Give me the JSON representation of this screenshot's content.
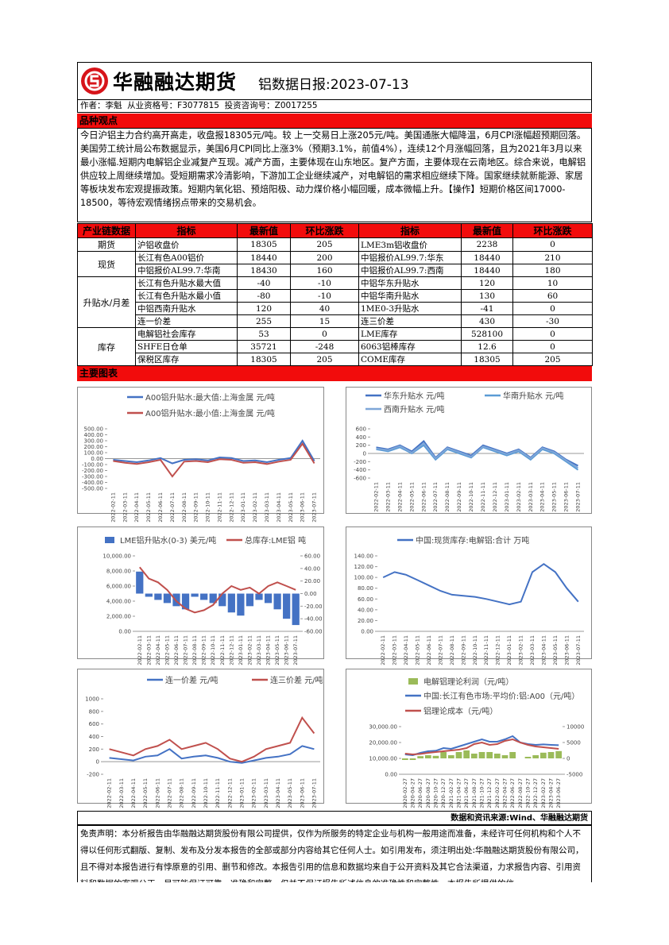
{
  "header": {
    "company": "华融融达期货",
    "report_title": "铝数据日报:2023-07-13",
    "author_line": "作者：李魁  从业资格号：F3077815  投资咨询号：Z0017255"
  },
  "view": {
    "heading": "品种观点",
    "text": "今日沪铝主力合约高开高走，收盘报18305元/吨。较 上一交易日上涨205元/吨。美国通胀大幅降温，6月CPI涨幅超预期回落。美国劳工统计局公布数据显示，美国6月CPI同比上涨3%（预期3.1%，前值4%），连续12个月涨幅回落，且为2021年3月以来最小涨幅.短期内电解铝企业减复产互现。减产方面，主要体现在山东地区。复产方面，主要体现在云南地区。综合来说，电解铝供应较上周继续增加。受短期需求冷清影响，下游加工企业继续减产，对电解铝的需求相应继续下降。国家继续就新能源、家居等板块发布宏观提振政策。短期内氧化铝、预焙阳极、动力煤价格小幅回暖，成本微幅上升。【操作】短期价格区间17000-18500，等待宏观情绪拐点带来的交易机会。"
  },
  "table": {
    "header": [
      "产业链数据",
      "指标",
      "最新值",
      "环比涨跌",
      "指标",
      "最新值",
      "环比涨跌"
    ],
    "groups": [
      {
        "label": "期货",
        "rows": [
          [
            "沪铝收盘价",
            18305,
            205,
            "LME3m铝收盘价",
            2238,
            0
          ]
        ]
      },
      {
        "label": "现货",
        "rows": [
          [
            "长江有色A00铝价",
            18440,
            200,
            "中铝报价AL99.7:华东",
            18440,
            210
          ],
          [
            "中铝报价AL99.7:华南",
            18430,
            160,
            "中铝报价AL99.7:西南",
            18440,
            180
          ]
        ]
      },
      {
        "label": "升贴水/月差",
        "rows": [
          [
            "长江有色升贴水最大值",
            -40,
            -10,
            "中铝华东升贴水",
            120,
            10
          ],
          [
            "长江有色升贴水最小值",
            -80,
            -10,
            "中铝华南升贴水",
            130,
            60
          ],
          [
            "中铝西南升贴水",
            120,
            40,
            "1ME0-3升贴水",
            -41,
            0
          ],
          [
            "连一价差",
            255,
            15,
            "连三价差",
            430,
            -30
          ]
        ]
      },
      {
        "label": "库存",
        "rows": [
          [
            "电解铝社会库存",
            53,
            0,
            "LME库存",
            528100,
            0
          ],
          [
            "SHFE日仓单",
            35721,
            -248,
            "6063铝棒库存",
            12.6,
            0
          ],
          [
            "保税区库存",
            18305,
            205,
            "COME库存",
            18305,
            205
          ]
        ]
      }
    ]
  },
  "charts_heading": "主要图表",
  "chart_data": [
    {
      "type": "line",
      "categories": [
        "2022-02-11",
        "2022-03-11",
        "2022-04-11",
        "2022-05-11",
        "2022-06-11",
        "2022-07-11",
        "2022-08-11",
        "2022-09-11",
        "2022-10-11",
        "2022-11-11",
        "2022-12-11",
        "2023-01-11",
        "2023-02-11",
        "2023-03-11",
        "2023-04-11",
        "2023-05-11",
        "2023-06-11",
        "2023-07-11"
      ],
      "series": [
        {
          "name": "A00铝升贴水:最大值:上海金属 元/吨",
          "color": "#4472c4",
          "values": [
            -20,
            -40,
            -60,
            -30,
            10,
            -80,
            -20,
            -10,
            -30,
            20,
            10,
            -40,
            -30,
            -60,
            -20,
            10,
            300,
            -40
          ]
        },
        {
          "name": "A00铝升贴水:最小值:上海金属 元/吨",
          "color": "#c0504d",
          "values": [
            -40,
            -70,
            -90,
            -60,
            -20,
            -300,
            -50,
            -40,
            -60,
            -10,
            -20,
            -70,
            -60,
            -90,
            -50,
            -20,
            250,
            -80
          ]
        }
      ],
      "ylim": [
        -500,
        500
      ],
      "yticks": [
        {
          "value": -500,
          "label": "-500.00"
        },
        {
          "value": -400,
          "label": "-400.00"
        },
        {
          "value": -300,
          "label": "-300.00"
        },
        {
          "value": -200,
          "label": "-200.00"
        },
        {
          "value": -100,
          "label": "-100.00"
        },
        {
          "value": 0,
          "label": "0.00"
        },
        {
          "value": 100,
          "label": "100.00"
        },
        {
          "value": 200,
          "label": "200.00"
        },
        {
          "value": 300,
          "label": "300.00"
        },
        {
          "value": 400,
          "label": "400.00"
        },
        {
          "value": 500,
          "label": "500.00"
        }
      ]
    },
    {
      "type": "line",
      "categories": [
        "2022-02-11",
        "2022-03-11",
        "2022-04-11",
        "2022-05-11",
        "2022-06-11",
        "2022-07-11",
        "2022-08-11",
        "2022-09-11",
        "2022-10-11",
        "2022-11-11",
        "2022-12-11",
        "2023-01-11",
        "2023-02-11",
        "2023-03-11",
        "2023-04-11",
        "2023-05-11",
        "2023-06-11",
        "2023-07-11"
      ],
      "series": [
        {
          "name": "华东升贴水 元/吨",
          "color": "#4472c4",
          "values": [
            150,
            100,
            200,
            50,
            300,
            -100,
            150,
            50,
            -50,
            200,
            100,
            0,
            100,
            -100,
            150,
            50,
            -150,
            -300
          ]
        },
        {
          "name": "华南升贴水 元/吨",
          "color": "#5b9bd5",
          "values": [
            100,
            50,
            150,
            0,
            200,
            -150,
            100,
            0,
            -100,
            150,
            50,
            -50,
            50,
            -150,
            100,
            0,
            -200,
            -400
          ]
        },
        {
          "name": "西南升贴水 元/吨",
          "color": "#7ea6d8",
          "values": [
            120,
            80,
            180,
            20,
            250,
            -120,
            130,
            30,
            -80,
            170,
            80,
            -20,
            80,
            -120,
            130,
            30,
            -170,
            -350
          ]
        }
      ],
      "ylim": [
        -600,
        600
      ],
      "yticks": [
        -600,
        -400,
        -200,
        0,
        200,
        400,
        600
      ]
    },
    {
      "type": "combo",
      "categories": [
        "2022-02-11",
        "2022-03-11",
        "2022-04-11",
        "2022-05-11",
        "2022-06-11",
        "2022-07-11",
        "2022-08-11",
        "2022-09-11",
        "2022-10-11",
        "2022-11-11",
        "2022-12-11",
        "2023-01-11",
        "2023-02-11",
        "2023-03-11",
        "2023-04-11",
        "2023-05-11",
        "2023-06-11",
        "2023-07-11"
      ],
      "series": [
        {
          "name": "LME铝升贴水(0-3) 美元/吨",
          "type": "bar",
          "axis": "y2",
          "color": "#4472c4",
          "values": [
            35,
            -5,
            -10,
            -15,
            -20,
            -25,
            -5,
            -10,
            -15,
            -20,
            -30,
            -35,
            -20,
            -10,
            -15,
            -25,
            -40,
            -50
          ]
        },
        {
          "name": "总库存:LME铝 吨",
          "type": "line",
          "color": "#c0504d",
          "values": [
            8500,
            7000,
            6500,
            5500,
            4000,
            3000,
            2500,
            2800,
            3500,
            5000,
            6000,
            5500,
            5800,
            5000,
            6000,
            6500,
            6000,
            5500
          ]
        }
      ],
      "ylim": [
        0,
        10000
      ],
      "yticks": [
        {
          "value": 0,
          "label": "0.00"
        },
        {
          "value": 2000,
          "label": "2,000.00"
        },
        {
          "value": 4000,
          "label": "4,000.00"
        },
        {
          "value": 6000,
          "label": "6,000.00"
        },
        {
          "value": 8000,
          "label": "8,000.00"
        },
        {
          "value": 10000,
          "label": "10,000.00"
        }
      ],
      "y2lim": [
        -60,
        60
      ],
      "y2ticks": [
        {
          "value": -60,
          "label": "-60.00"
        },
        {
          "value": -40,
          "label": "-40.00"
        },
        {
          "value": -20,
          "label": "-20.00"
        },
        {
          "value": 0,
          "label": "0.00"
        },
        {
          "value": 20,
          "label": "20.00"
        },
        {
          "value": 40,
          "label": "40.00"
        },
        {
          "value": 60,
          "label": "60.00"
        }
      ]
    },
    {
      "type": "line",
      "categories": [
        "2022-02-11",
        "2022-03-11",
        "2022-04-11",
        "2022-05-11",
        "2022-06-11",
        "2022-07-11",
        "2022-08-11",
        "2022-09-11",
        "2022-10-11",
        "2022-11-11",
        "2022-12-11",
        "2023-01-11",
        "2023-02-11",
        "2023-03-11",
        "2023-04-11",
        "2023-05-11",
        "2023-06-11",
        "2023-07-11"
      ],
      "series": [
        {
          "name": "中国:现货库存:电解铝:合计 万吨",
          "color": "#4472c4",
          "values": [
            100,
            110,
            105,
            95,
            85,
            75,
            68,
            66,
            64,
            60,
            55,
            50,
            55,
            110,
            125,
            110,
            80,
            55
          ]
        }
      ],
      "ylim": [
        0,
        140
      ],
      "yticks": [
        {
          "value": 0,
          "label": "0.00"
        },
        {
          "value": 20,
          "label": "20.00"
        },
        {
          "value": 40,
          "label": "40.00"
        },
        {
          "value": 60,
          "label": "60.00"
        },
        {
          "value": 80,
          "label": "80.00"
        },
        {
          "value": 100,
          "label": "100.00"
        },
        {
          "value": 120,
          "label": "120.00"
        },
        {
          "value": 140,
          "label": "140.00"
        }
      ]
    },
    {
      "type": "line",
      "categories": [
        "2022-02-11",
        "2022-03-11",
        "2022-04-11",
        "2022-05-11",
        "2022-06-11",
        "2022-07-11",
        "2022-08-11",
        "2022-09-11",
        "2022-10-11",
        "2022-11-11",
        "2022-12-11",
        "2023-01-11",
        "2023-02-11",
        "2023-03-11",
        "2023-04-11",
        "2023-05-11",
        "2023-06-11",
        "2023-07-11"
      ],
      "series": [
        {
          "name": "连一价差 元/吨",
          "color": "#4472c4",
          "values": [
            60,
            40,
            20,
            80,
            100,
            200,
            50,
            80,
            100,
            60,
            0,
            -20,
            20,
            60,
            80,
            120,
            250,
            200
          ]
        },
        {
          "name": "连三价差 元/吨",
          "color": "#c0504d",
          "values": [
            200,
            150,
            100,
            200,
            250,
            350,
            200,
            250,
            300,
            200,
            50,
            0,
            80,
            200,
            250,
            300,
            700,
            450
          ]
        }
      ],
      "ylim": [
        -200,
        1000
      ],
      "yticks": [
        -200,
        0,
        200,
        400,
        600,
        800,
        1000
      ]
    },
    {
      "type": "combo",
      "categories": [
        "2020-02-27",
        "2020-04-27",
        "2020-06-27",
        "2020-08-27",
        "2020-10-27",
        "2020-12-27",
        "2021-02-27",
        "2021-04-27",
        "2021-06-27",
        "2021-08-27",
        "2021-10-27",
        "2021-12-27",
        "2022-02-27",
        "2022-04-27",
        "2022-06-27",
        "2022-08-27",
        "2022-10-27",
        "2022-12-27",
        "2023-02-27",
        "2023-04-27",
        "2023-06-27"
      ],
      "series": [
        {
          "name": "电解铝理论利润（元/吨）",
          "type": "bar",
          "axis": "y2",
          "color": "#9bbb59",
          "values": [
            -500,
            -500,
            700,
            1000,
            800,
            2000,
            1000,
            2000,
            2500,
            1500,
            2000,
            2000,
            1500,
            1000,
            2000,
            0,
            500,
            1000,
            1800,
            2000,
            2300
          ]
        },
        {
          "name": "中国:长江有色市场:平均价:铝:A00（元/吨）",
          "type": "line",
          "color": "#4472c4",
          "values": [
            12500,
            12000,
            13500,
            14500,
            14800,
            16500,
            16000,
            17500,
            19000,
            20500,
            22000,
            20500,
            20500,
            22000,
            24000,
            20000,
            19000,
            18500,
            18800,
            18500,
            18300
          ]
        },
        {
          "name": "铝理论成本（元/吨）",
          "type": "line",
          "color": "#c0504d",
          "values": [
            13000,
            12500,
            12800,
            13500,
            14000,
            14500,
            15000,
            15500,
            16500,
            19000,
            20000,
            18500,
            19000,
            21000,
            22000,
            20000,
            18500,
            17500,
            17000,
            16500,
            16000
          ]
        }
      ],
      "ylim": [
        0,
        30000
      ],
      "yticks": [
        {
          "value": 0,
          "label": "0.00"
        },
        {
          "value": 10000,
          "label": "10,000.00"
        },
        {
          "value": 20000,
          "label": "20,000.00"
        },
        {
          "value": 30000,
          "label": "30,000.00"
        }
      ],
      "y2lim": [
        -5000,
        10000
      ],
      "y2ticks": [
        -5000,
        0,
        5000,
        10000
      ]
    }
  ],
  "footer": {
    "source": "数据和资讯来源:Wind、华融融达期货",
    "disclaimer": "免责声明：本分析报告由华融融达期货股份有限公司提供，仅作为所服务的特定企业与机构一般用途而准备，未经许可任何机构和个人不得以任何形式翻版、复制、发布及分发本报告的全部或部分内容给其它任何人士。如引用发布，须注明出处:华融融达期货股份有限公司，且不得对本报告进行有悖原意的引用、删节和修改。本报告引用的信息和数据均来自于公开资料及其它合法渠道，力求报告内容、引用资料和数据的客观公正。尽可能保证可靠、准确和完整，但并不保证报告所述信息的准确性和完整性，本报告所提供的信"
  }
}
